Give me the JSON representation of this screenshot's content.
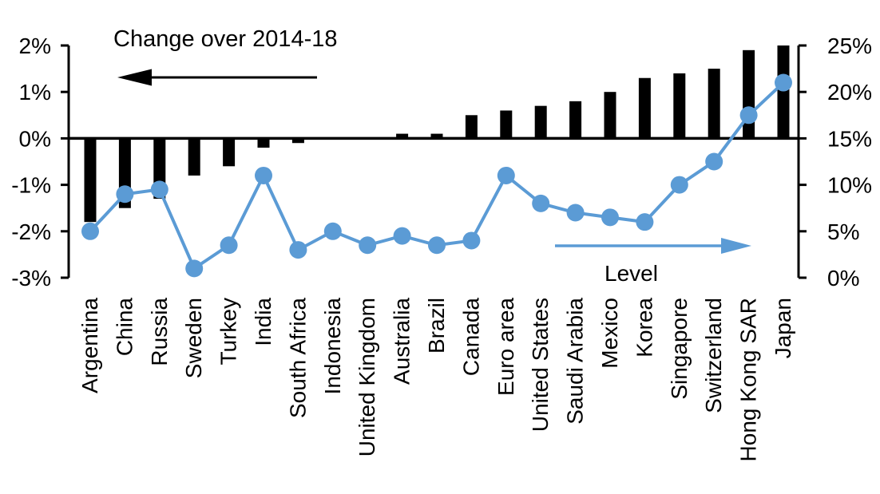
{
  "chart_data": {
    "type": "combo_bar_line",
    "categories": [
      "Argentina",
      "China",
      "Russia",
      "Sweden",
      "Turkey",
      "India",
      "South Africa",
      "Indonesia",
      "United Kingdom",
      "Australia",
      "Brazil",
      "Canada",
      "Euro area",
      "United States",
      "Saudi Arabia",
      "Mexico",
      "Korea",
      "Singapore",
      "Switzerland",
      "Hong Kong SAR",
      "Japan"
    ],
    "series": [
      {
        "name": "Change over 2014-18",
        "type": "bar",
        "axis": "left",
        "color": "#000000",
        "values": [
          -1.8,
          -1.5,
          -1.3,
          -0.8,
          -0.6,
          -0.2,
          -0.1,
          0,
          0,
          0.1,
          0.1,
          0.5,
          0.6,
          0.7,
          0.8,
          1.0,
          1.3,
          1.4,
          1.5,
          1.9,
          2.0
        ]
      },
      {
        "name": "Level",
        "type": "line",
        "axis": "right",
        "color": "#5B9BD5",
        "values": [
          5,
          9,
          9.5,
          1,
          3.5,
          11,
          3,
          5,
          3.5,
          4.5,
          3.5,
          4,
          11,
          8,
          7,
          6.5,
          6,
          10,
          12.5,
          17.5,
          21
        ]
      }
    ],
    "left_axis": {
      "min": -3,
      "max": 2,
      "unit": "%",
      "tick_labels": [
        "2%",
        "1%",
        "0%",
        "-1%",
        "-2%",
        "-3%"
      ]
    },
    "right_axis": {
      "min": 0,
      "max": 25,
      "unit": "%",
      "tick_labels": [
        "25%",
        "20%",
        "15%",
        "10%",
        "5%",
        "0%"
      ]
    },
    "annotations": [
      {
        "text": "Change over 2014-18",
        "arrow_direction": "left",
        "color": "#000000"
      },
      {
        "text": "Level",
        "arrow_direction": "right",
        "color": "#5B9BD5"
      }
    ],
    "legend_position": "none",
    "grid": false
  },
  "colors": {
    "background": "#FFFFFF",
    "bar": "#000000",
    "line": "#5B9BD5",
    "axis": "#000000",
    "text": "#000000"
  }
}
